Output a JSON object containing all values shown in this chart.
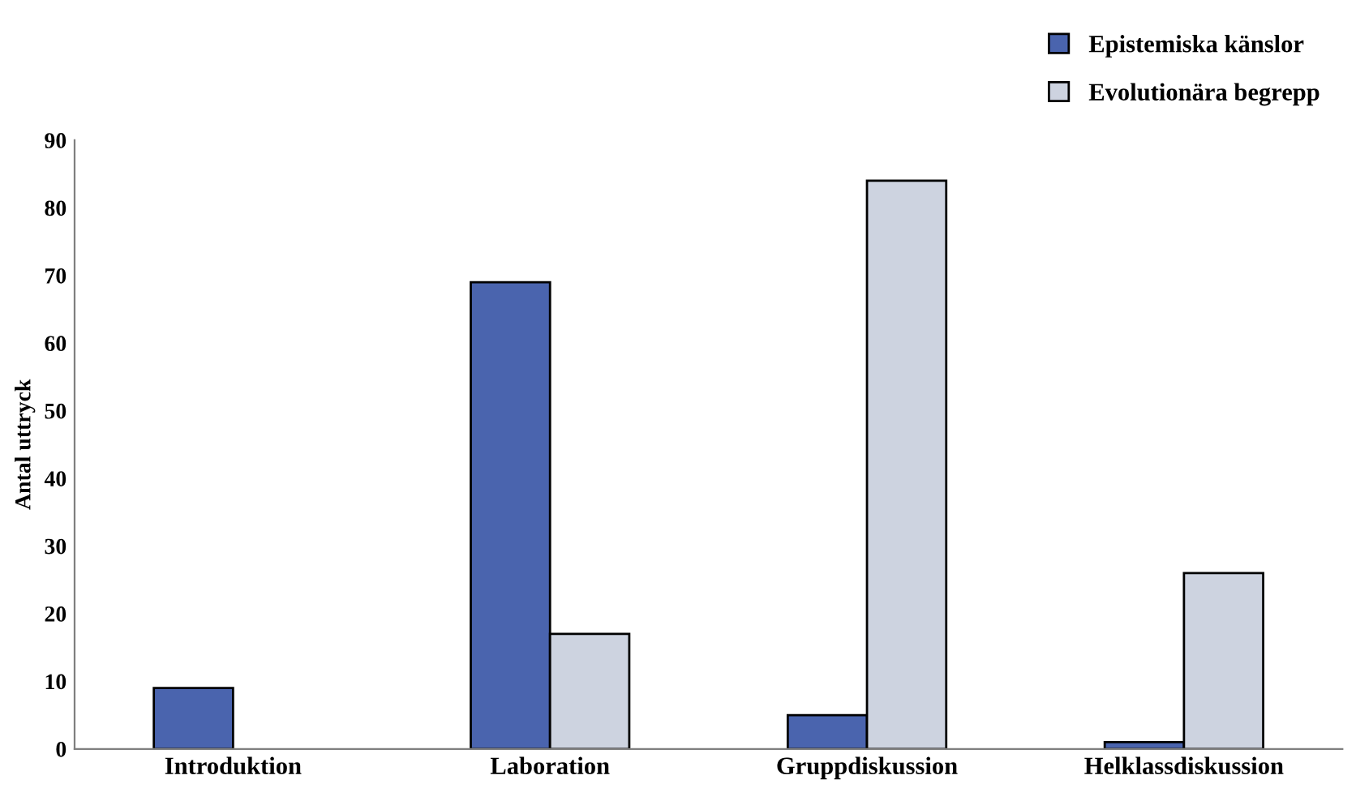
{
  "chart_data": {
    "type": "bar",
    "ylabel": "Antal uttryck",
    "categories": [
      "Introduktion",
      "Laboration",
      "Gruppdiskussion",
      "Helklassdiskussion"
    ],
    "series": [
      {
        "name": "Epistemiska känslor",
        "color": "#4a64ae",
        "values": [
          9,
          69,
          5,
          1
        ]
      },
      {
        "name": "Evolutionära begrepp",
        "color": "#cdd3e0",
        "values": [
          null,
          17,
          84,
          26
        ]
      }
    ],
    "ylim": [
      0,
      90
    ],
    "yticks": [
      0,
      10,
      20,
      30,
      40,
      50,
      60,
      70,
      80,
      90
    ],
    "grid": false,
    "legend": "top right"
  }
}
